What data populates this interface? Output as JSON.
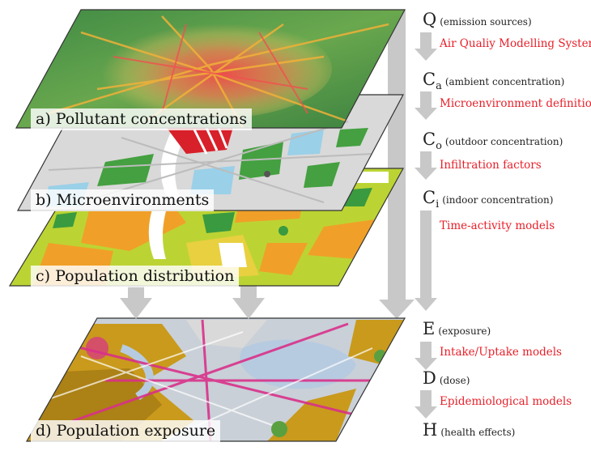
{
  "layers": [
    {
      "id": "a",
      "label": "a) Pollutant concentrations"
    },
    {
      "id": "b",
      "label": "b) Microenvironments"
    },
    {
      "id": "c",
      "label": "c) Population distribution"
    },
    {
      "id": "d",
      "label": "d) Population exposure"
    }
  ],
  "chain": {
    "q": {
      "symbol": "Q",
      "sub": "",
      "desc": "(emission sources)"
    },
    "ca": {
      "symbol": "C",
      "sub": "a",
      "desc": "(ambient concentration)"
    },
    "co": {
      "symbol": "C",
      "sub": "o",
      "desc": "(outdoor concentration)"
    },
    "ci": {
      "symbol": "C",
      "sub": "i",
      "desc": "(indoor concentration)"
    },
    "e": {
      "symbol": "E",
      "sub": "",
      "desc": "(exposure)"
    },
    "d": {
      "symbol": "D",
      "sub": "",
      "desc": "(dose)"
    },
    "h": {
      "symbol": "H",
      "sub": "",
      "desc": "(health effects)"
    }
  },
  "models": {
    "aqms": "Air Qualiy Modelling System",
    "micro": "Microenvironment definition",
    "infil": "Infiltration factors",
    "time": "Time-activity models",
    "intake": "Intake/Uptake models",
    "epi": "Epidemiological models"
  },
  "colors": {
    "model_text": "#e8202a",
    "arrow": "#c8c8c8",
    "layer_a": "#5a9a4a",
    "layer_b": "#dcdcdc",
    "layer_c": "#b8d030",
    "layer_d": "#d4a020"
  }
}
